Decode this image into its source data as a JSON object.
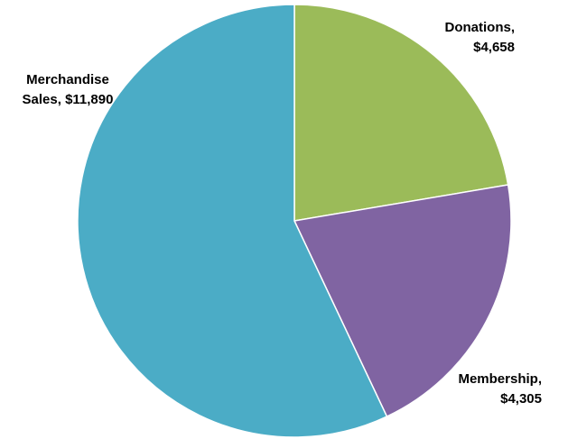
{
  "chart_data": {
    "type": "pie",
    "title": "",
    "start_angle_deg": 0,
    "direction": "clockwise",
    "legend": "none",
    "slices": [
      {
        "category": "Donations",
        "value": 4658,
        "label_line1": "Donations,",
        "label_line2": "$4,658",
        "color": "#9BBB59"
      },
      {
        "category": "Membership",
        "value": 4305,
        "label_line1": "Membership,",
        "label_line2": "$4,305",
        "color": "#8064A2"
      },
      {
        "category": "Merchandise Sales",
        "value": 11890,
        "label_line1": "Merchandise",
        "label_line2": "Sales,  $11,890",
        "color": "#4BACC6"
      }
    ]
  }
}
